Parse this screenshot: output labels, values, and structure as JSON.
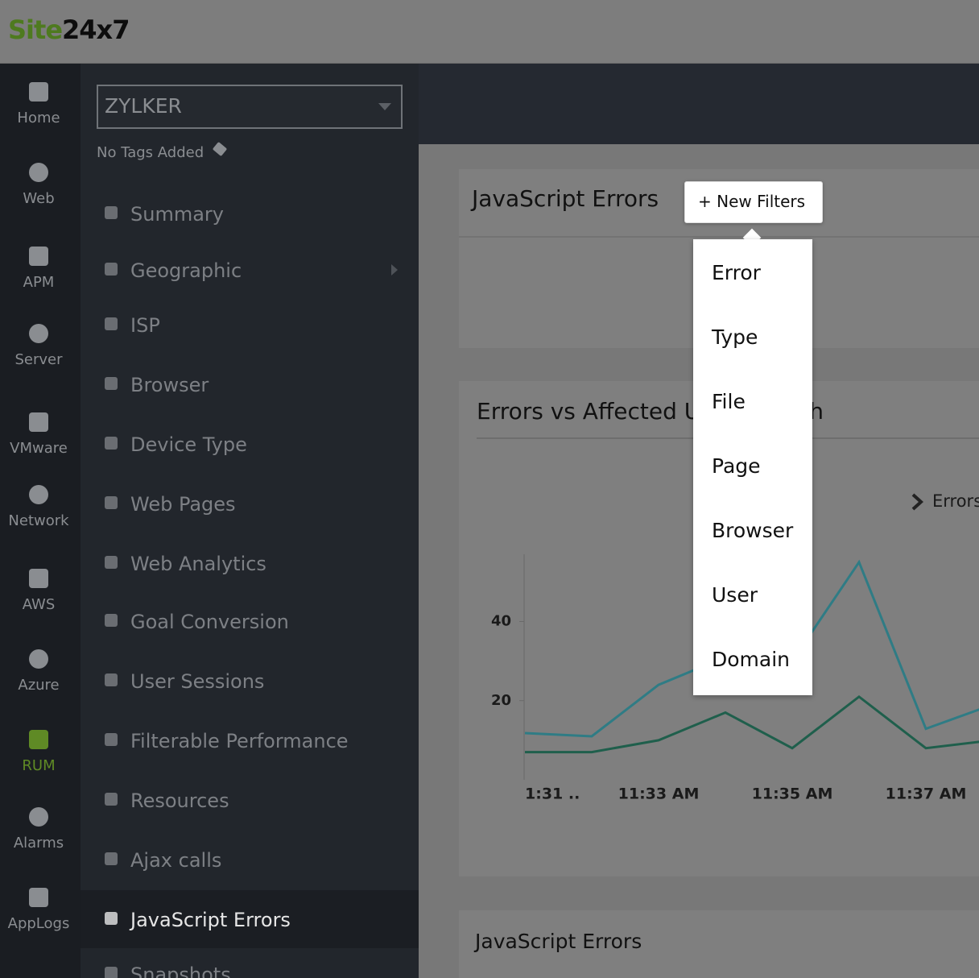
{
  "header": {
    "logo_site": "Site",
    "logo_num": "24x7"
  },
  "nav": [
    "Home",
    "Web",
    "APM",
    "Server",
    "VMware",
    "Network",
    "AWS",
    "Azure",
    "RUM",
    "Alarms",
    "AppLogs"
  ],
  "nav_active": 8,
  "sidebar": {
    "monitor": "ZYLKER",
    "tags": "No Tags Added",
    "items": [
      "Summary",
      "Geographic",
      "ISP",
      "Browser",
      "Device Type",
      "Web Pages",
      "Web Analytics",
      "Goal Conversion",
      "User Sessions",
      "Filterable Performance",
      "Resources",
      "Ajax calls",
      "JavaScript Errors",
      "Snapshots"
    ],
    "active": 12
  },
  "panel_title": "JavaScript Errors",
  "new_filters": "+ New Filters",
  "filter_menu": [
    "Error",
    "Type",
    "File",
    "Page",
    "Browser",
    "User",
    "Domain"
  ],
  "bottom_title": "JavaScript Errors",
  "chart_data": {
    "type": "line",
    "title": "Errors vs Affected Users Graph",
    "categories": [
      "1:31 ..",
      null,
      "11:33 AM",
      null,
      "11:35 AM",
      null,
      "11:37 AM",
      null
    ],
    "series": [
      {
        "name": "Errors",
        "color": "#2f7c85",
        "values": [
          11.8,
          11,
          24,
          31,
          30,
          55,
          12.9,
          19
        ]
      },
      {
        "color": "#1f5f4c",
        "values": [
          7,
          7,
          10,
          17,
          8,
          21,
          8,
          10
        ]
      }
    ],
    "ylim": [
      0,
      57
    ],
    "yticks": [
      20,
      40
    ]
  }
}
